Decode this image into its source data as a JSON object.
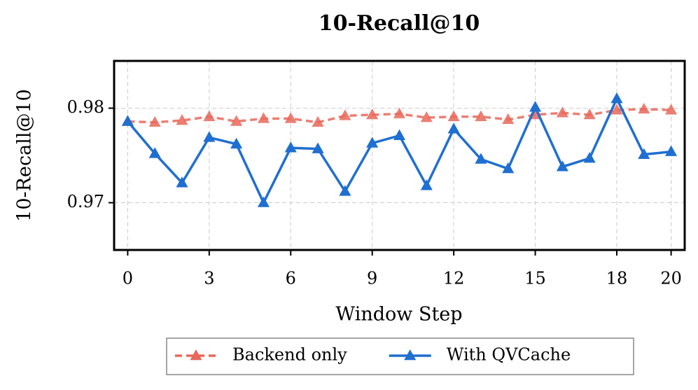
{
  "chart_data": {
    "type": "line",
    "title": "10-Recall@10",
    "xlabel": "Window Step",
    "ylabel": "10-Recall@10",
    "x": [
      0,
      1,
      2,
      3,
      4,
      5,
      6,
      7,
      8,
      9,
      10,
      11,
      12,
      13,
      14,
      15,
      16,
      17,
      18,
      19,
      20
    ],
    "series": [
      {
        "name": "Backend only",
        "color": "#e8685a",
        "linestyle": "dashed",
        "values": [
          0.9786,
          0.9785,
          0.9787,
          0.9791,
          0.9786,
          0.9789,
          0.9789,
          0.9785,
          0.9792,
          0.9793,
          0.9794,
          0.979,
          0.9791,
          0.9791,
          0.9788,
          0.9793,
          0.9795,
          0.9793,
          0.9798,
          0.9799,
          0.9798
        ]
      },
      {
        "name": "With QVCache",
        "color": "#1f6fd1",
        "linestyle": "solid",
        "values": [
          0.9786,
          0.9752,
          0.9721,
          0.9769,
          0.9762,
          0.97,
          0.9758,
          0.9757,
          0.9712,
          0.9763,
          0.9771,
          0.9718,
          0.9778,
          0.9746,
          0.9736,
          0.9801,
          0.9738,
          0.9747,
          0.981,
          0.9751,
          0.9754
        ]
      }
    ],
    "xlim": [
      -0.5,
      20.5
    ],
    "xticks": [
      0,
      3,
      6,
      9,
      12,
      15,
      18,
      20
    ],
    "ylim": [
      0.965,
      0.985
    ],
    "yticks": [
      0.97,
      0.98
    ],
    "grid": true,
    "legend": "bottom"
  }
}
